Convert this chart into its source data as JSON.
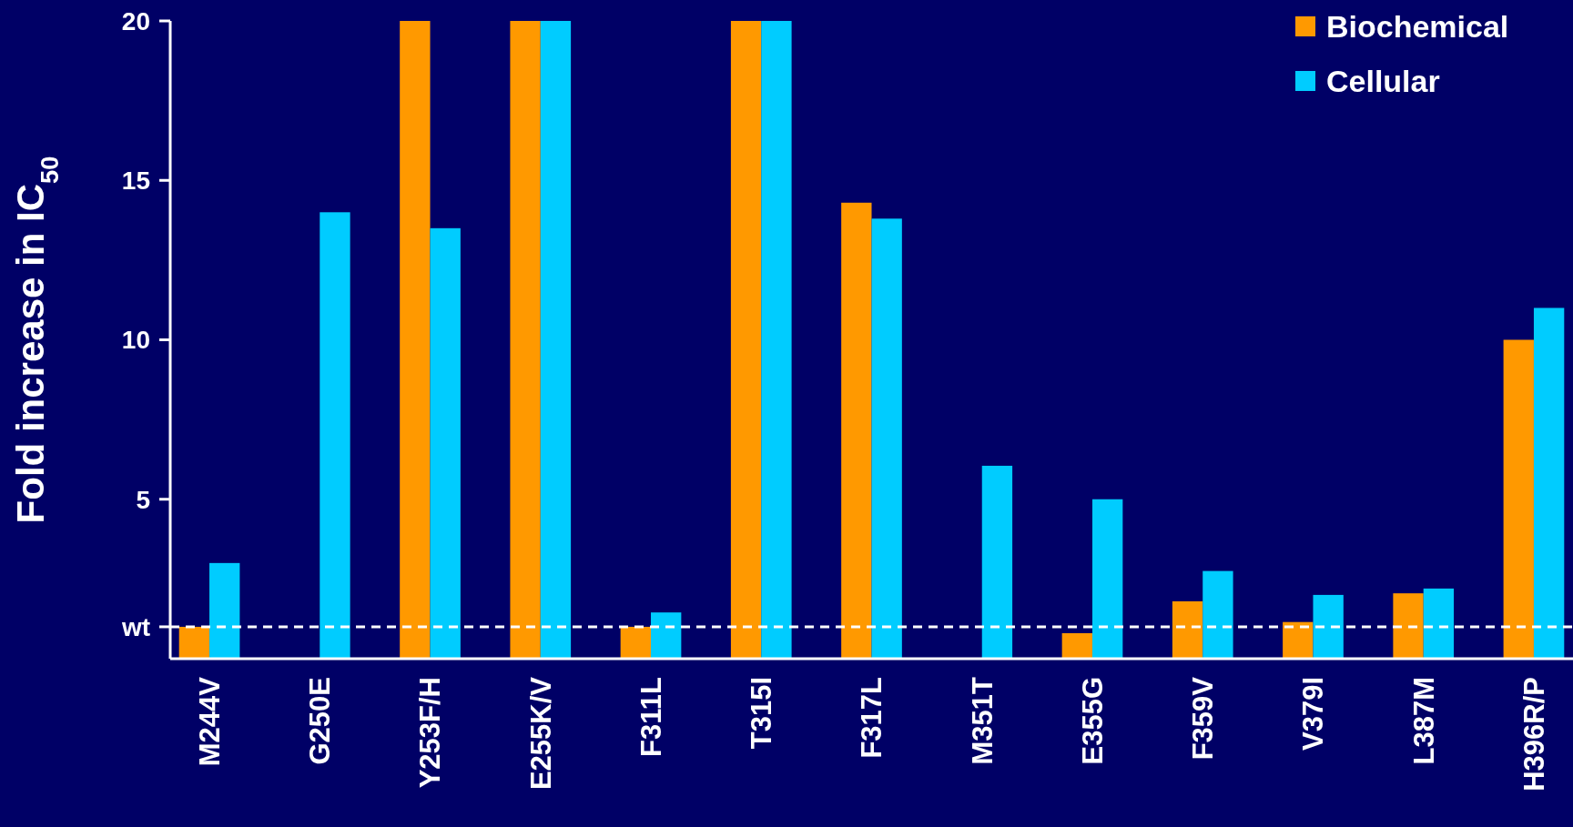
{
  "chart_data": {
    "type": "bar",
    "ylabel": "Fold increase in IC$_{50}$",
    "categories": [
      "M244V",
      "G250E",
      "Y253F/H",
      "E255K/V",
      "F311L",
      "T315I",
      "F317L",
      "M351T",
      "E355G",
      "F359V",
      "V379I",
      "L387M",
      "H396R/P"
    ],
    "series": [
      {
        "name": "Biochemical",
        "color": "#ff9900",
        "values": [
          1.0,
          null,
          20,
          20,
          1.0,
          20,
          14.3,
          null,
          0.8,
          1.8,
          1.15,
          2.05,
          10.0
        ]
      },
      {
        "name": "Cellular",
        "color": "#00ccff",
        "values": [
          3.0,
          14.0,
          13.5,
          20,
          1.45,
          20,
          13.8,
          6.05,
          5.0,
          2.75,
          2.0,
          2.2,
          11.0
        ]
      }
    ],
    "ylim": [
      0,
      20
    ],
    "yticks": [
      {
        "value": 1,
        "label": "wt"
      },
      5,
      10,
      15,
      20
    ],
    "ref_lines": [
      {
        "axis": "y",
        "value": 1,
        "color": "#ffffff",
        "line_style": "dashed"
      }
    ],
    "legend": "top right",
    "grid": false
  }
}
